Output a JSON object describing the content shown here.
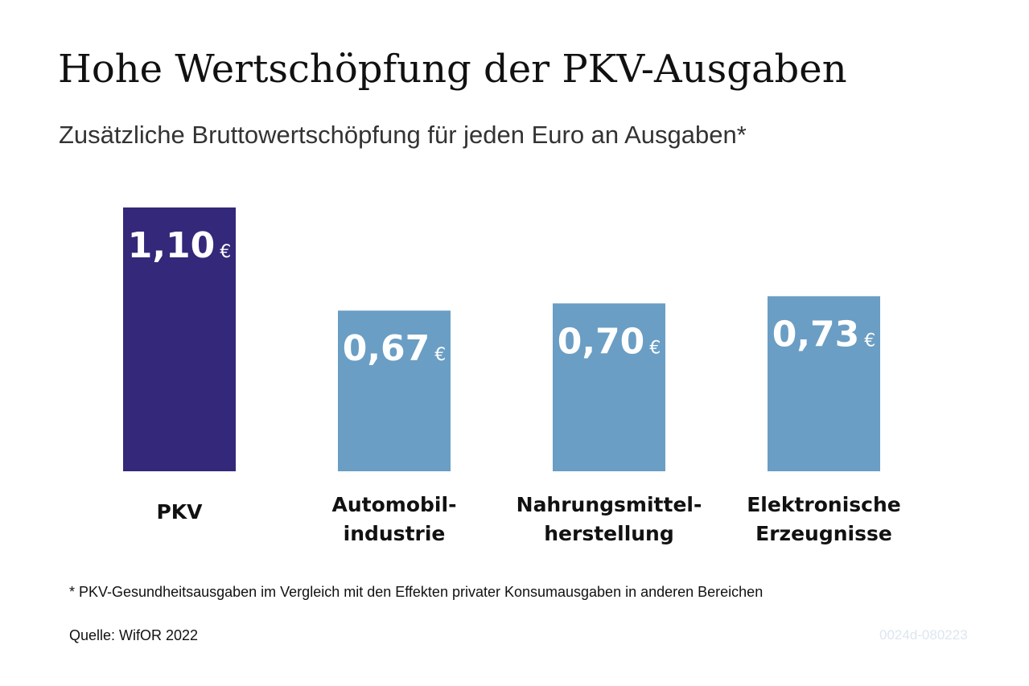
{
  "title": "Hohe Wertschöpfung der PKV-Ausgaben",
  "subtitle": "Zusätzliche Bruttowertschöpfung für jeden Euro an Ausgaben*",
  "footnote": "* PKV-Gesundheitsausgaben im Vergleich mit den Effekten privater Konsumausgaben in anderen Bereichen",
  "source": "Quelle: WifOR 2022",
  "code": "0024d-080223",
  "colors": {
    "highlight": "#33287a",
    "bar": "#6a9ec4",
    "value_text": "#ffffff",
    "code_text": "#dde6ef"
  },
  "chart_data": {
    "type": "bar",
    "categories": [
      [
        "PKV"
      ],
      [
        "Automobil-",
        "industrie"
      ],
      [
        "Nahrungsmittel-",
        "herstellung"
      ],
      [
        "Elektronische",
        "Erzeugnisse"
      ]
    ],
    "values": [
      1.1,
      0.67,
      0.7,
      0.73
    ],
    "value_labels": [
      "1,10",
      "0,67",
      "0,70",
      "0,73"
    ],
    "unit": "€",
    "highlight_index": 0,
    "ylim": [
      0,
      1.1
    ]
  }
}
